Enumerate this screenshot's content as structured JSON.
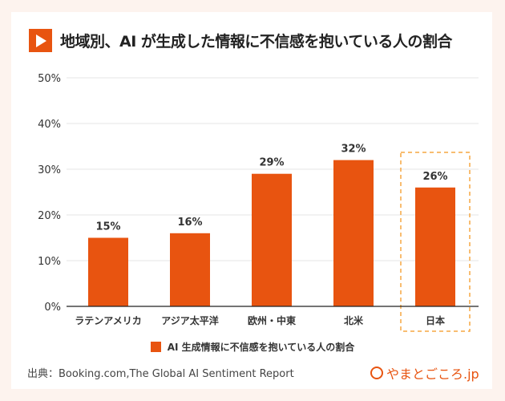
{
  "title": "地域別、AI が生成した情報に不信感を抱いている人の割合",
  "source": "出典：Booking.com,The Global AI Sentiment Report",
  "logo": "やまとごころ.jp",
  "colors": {
    "bar": "#e85410",
    "highlight": "#f5a742",
    "background": "#fdf3ee"
  },
  "chart_data": {
    "type": "bar",
    "categories": [
      "ラテンアメリカ",
      "アジア太平洋",
      "欧州・中東",
      "北米",
      "日本"
    ],
    "series": [
      {
        "name": "AI 生成情報に不信感を抱いている人の割合",
        "values": [
          15,
          16,
          29,
          32,
          26
        ]
      }
    ],
    "data_labels": [
      "15%",
      "16%",
      "29%",
      "32%",
      "26%"
    ],
    "yticks": [
      "0%",
      "10%",
      "20%",
      "30%",
      "40%",
      "50%"
    ],
    "ylim": [
      0,
      50
    ],
    "grid": true,
    "highlighted_category": "日本",
    "legend": "bottom"
  }
}
